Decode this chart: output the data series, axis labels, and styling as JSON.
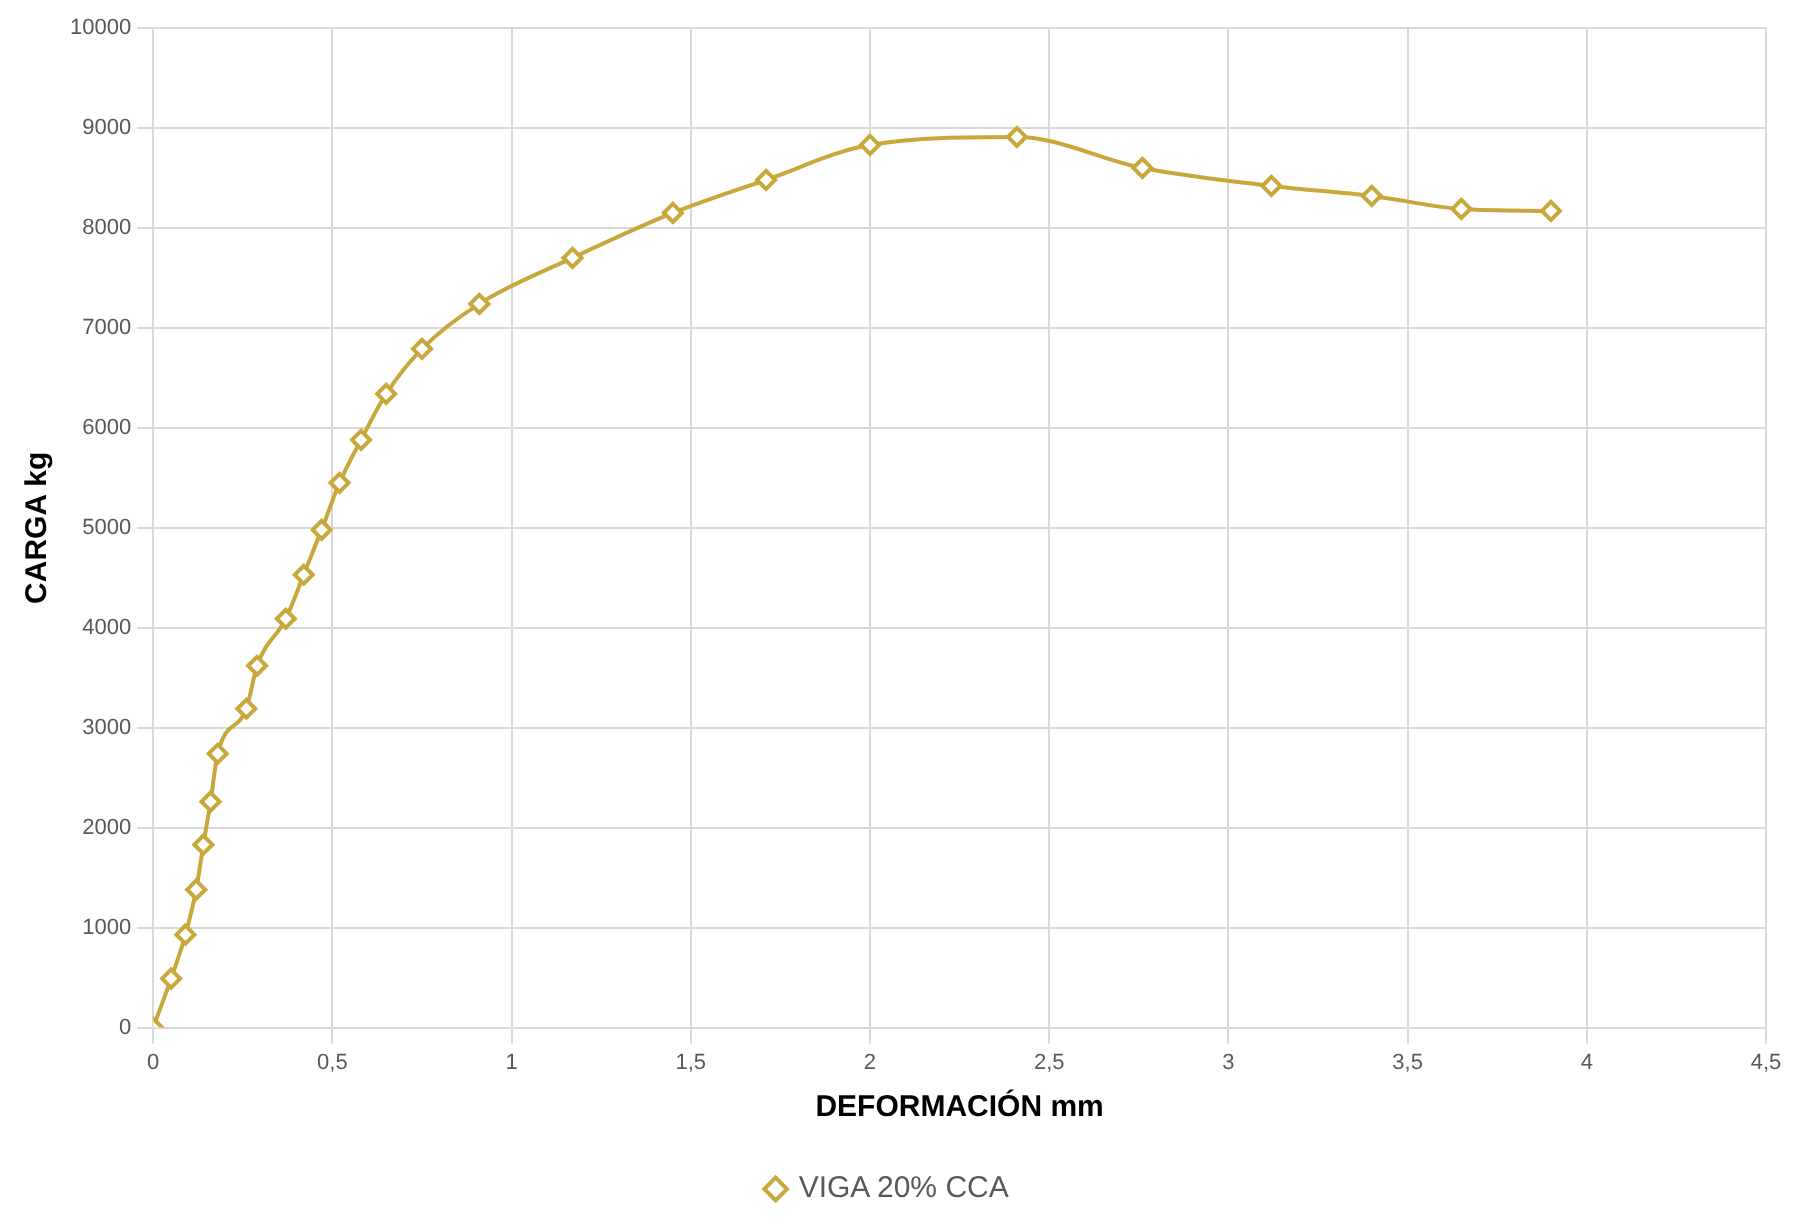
{
  "chart_data": {
    "type": "line",
    "xlabel": "DEFORMACIÓN mm",
    "ylabel": "CARGA kg",
    "xlim": [
      0,
      4.5
    ],
    "xticks": [
      0,
      {
        "value": 0.5,
        "label": "0,5"
      },
      1,
      {
        "value": 1.5,
        "label": "1,5"
      },
      2,
      {
        "value": 2.5,
        "label": "2,5"
      },
      3,
      {
        "value": 3.5,
        "label": "3,5"
      },
      4,
      {
        "value": 4.5,
        "label": "4,5"
      }
    ],
    "ylim": [
      0,
      10000
    ],
    "yticks": [
      0,
      1000,
      2000,
      3000,
      4000,
      5000,
      6000,
      7000,
      8000,
      9000,
      10000
    ],
    "x": [
      0,
      0.05,
      0.09,
      0.12,
      0.14,
      0.16,
      0.18,
      0.26,
      0.29,
      0.37,
      0.42,
      0.47,
      0.52,
      0.58,
      0.65,
      0.75,
      0.91,
      1.17,
      1.45,
      1.71,
      2.0,
      2.41,
      2.76,
      3.12,
      3.4,
      3.65,
      3.9
    ],
    "series": [
      {
        "name": "VIGA 20% CCA",
        "color": "#c8a83a",
        "values": [
          0,
          490,
          930,
          1380,
          1830,
          2260,
          2740,
          3190,
          3620,
          4090,
          4530,
          4980,
          5450,
          5880,
          6340,
          6790,
          7240,
          7700,
          8150,
          8480,
          8830,
          8910,
          8600,
          8420,
          8320,
          8190,
          8170
        ]
      }
    ],
    "grid": true,
    "legend": "bottom",
    "marker": "diamond",
    "line_style": "solid"
  }
}
